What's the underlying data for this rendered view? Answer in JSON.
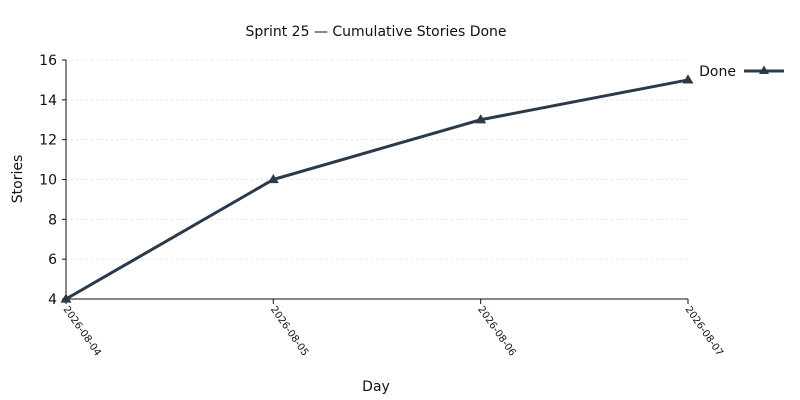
{
  "chart_data": {
    "type": "line",
    "title": "Sprint 25 — Cumulative Stories Done",
    "xlabel": "Day",
    "ylabel": "Stories",
    "x": [
      "2026-08-04",
      "2026-08-05",
      "2026-08-06",
      "2026-08-07"
    ],
    "series": [
      {
        "name": "Done",
        "values": [
          4,
          10,
          13,
          15
        ],
        "color": "#2b3a4a",
        "marker": "triangle"
      }
    ],
    "ylim": [
      4,
      16
    ],
    "yticks": [
      4,
      6,
      8,
      10,
      12,
      14,
      16
    ],
    "grid": "horizontal-dotted",
    "legend_position": "top-right"
  }
}
